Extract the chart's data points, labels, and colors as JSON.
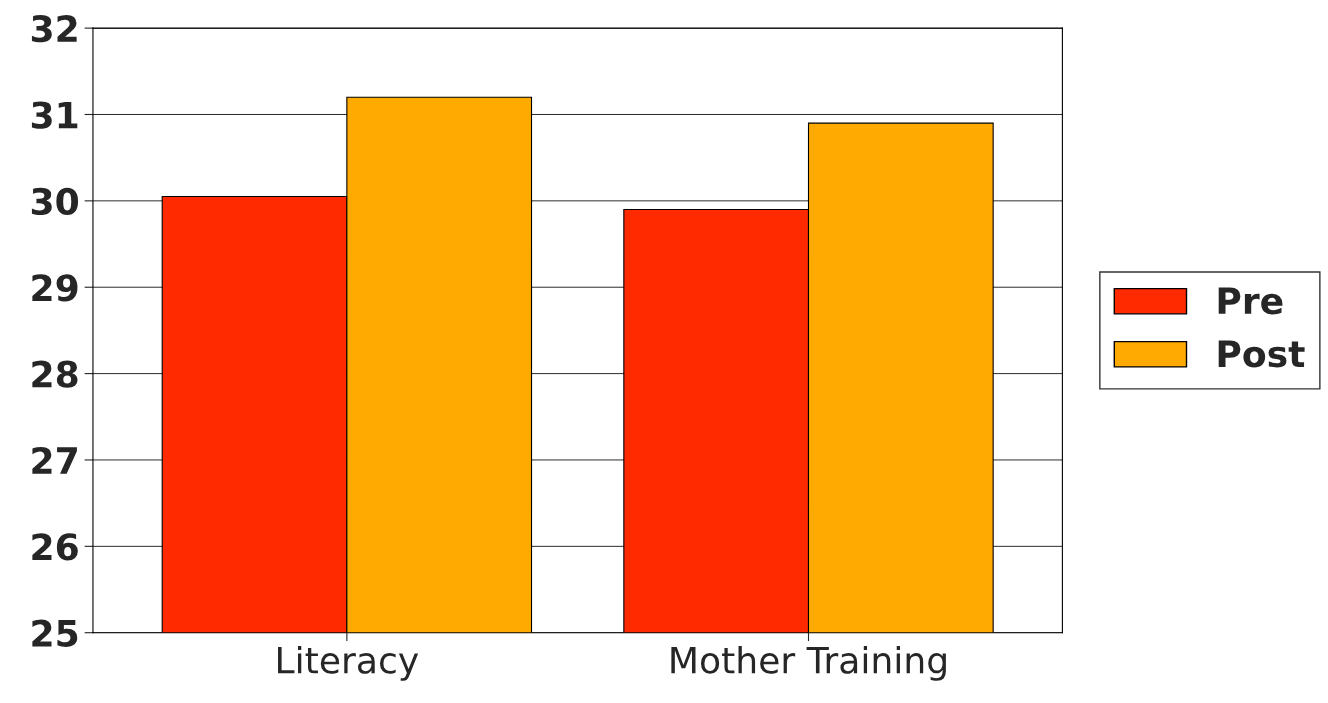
{
  "chart_data": {
    "type": "bar",
    "categories": [
      "Literacy",
      "Mother Training"
    ],
    "series": [
      {
        "name": "Pre",
        "color": "#ff2a00",
        "values": [
          30.05,
          29.9
        ]
      },
      {
        "name": "Post",
        "color": "#ffaa00",
        "values": [
          31.2,
          30.9
        ]
      }
    ],
    "ylim": [
      25,
      32
    ],
    "yticks": [
      25,
      26,
      27,
      28,
      29,
      30,
      31,
      32
    ],
    "grid": "y",
    "legend": "right"
  }
}
